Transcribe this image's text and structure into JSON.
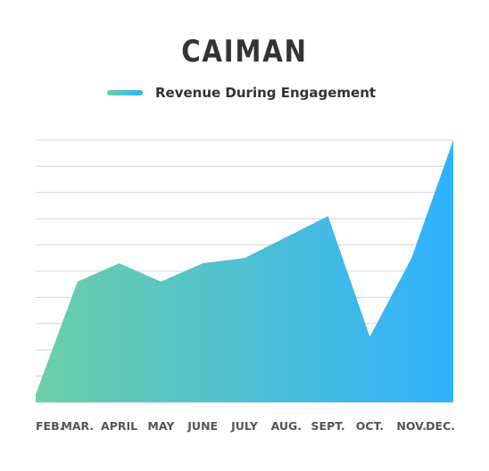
{
  "chart_data": {
    "type": "area",
    "title": "CAIMAN",
    "xlabel": "",
    "ylabel": "",
    "categories": [
      "FEB.",
      "MAR.",
      "APRIL",
      "MAY",
      "JUNE",
      "JULY",
      "AUG.",
      "SEPT.",
      "OCT.",
      "NOV.",
      "DEC."
    ],
    "series": [
      {
        "name": "Revenue During Engagement",
        "values": [
          0.3,
          4.6,
          5.3,
          4.6,
          5.3,
          5.5,
          6.3,
          7.1,
          2.5,
          5.5,
          10.0
        ]
      }
    ],
    "ylim": [
      0,
      10
    ],
    "grid": true,
    "legend_position": "top-center",
    "colors": {
      "gradient_start": "#6ccfa6",
      "gradient_end": "#2fb1fd",
      "grid": "#d4d4d4"
    }
  }
}
